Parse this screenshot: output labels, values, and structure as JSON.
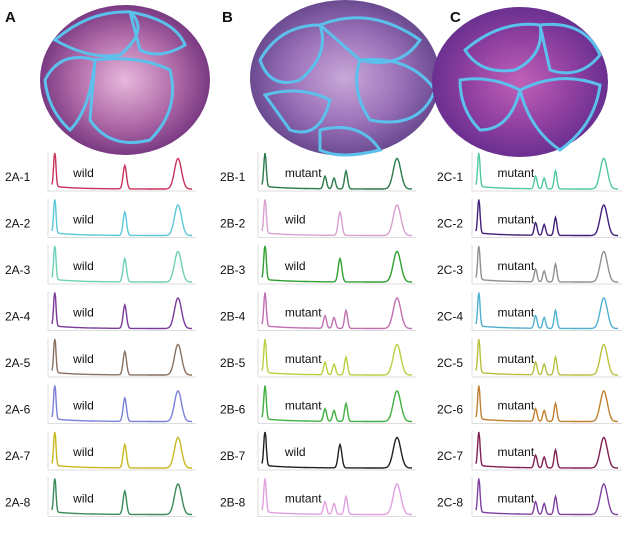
{
  "panels": [
    {
      "letter": "A",
      "rows": [
        {
          "label": "2A-1",
          "status": "wild",
          "color": "#c8325a"
        },
        {
          "label": "2A-2",
          "status": "wild",
          "color": "#5bc8d8"
        },
        {
          "label": "2A-3",
          "status": "wild",
          "color": "#6fd0b8"
        },
        {
          "label": "2A-4",
          "status": "wild",
          "color": "#7a3a9a"
        },
        {
          "label": "2A-5",
          "status": "wild",
          "color": "#8a7060"
        },
        {
          "label": "2A-6",
          "status": "wild",
          "color": "#7a80d8"
        },
        {
          "label": "2A-7",
          "status": "wild",
          "color": "#c8b820"
        },
        {
          "label": "2A-8",
          "status": "wild",
          "color": "#3a8a5a"
        }
      ]
    },
    {
      "letter": "B",
      "rows": [
        {
          "label": "2B-1",
          "status": "mutant",
          "color": "#2a7a4a"
        },
        {
          "label": "2B-2",
          "status": "wild",
          "color": "#d8a0d0"
        },
        {
          "label": "2B-3",
          "status": "wild",
          "color": "#30a030"
        },
        {
          "label": "2B-4",
          "status": "mutant",
          "color": "#c070b0"
        },
        {
          "label": "2B-5",
          "status": "mutant",
          "color": "#b8d040"
        },
        {
          "label": "2B-6",
          "status": "mutant",
          "color": "#40b040"
        },
        {
          "label": "2B-7",
          "status": "wild",
          "color": "#202020"
        },
        {
          "label": "2B-8",
          "status": "mutant",
          "color": "#e0a0e0"
        }
      ]
    },
    {
      "letter": "C",
      "rows": [
        {
          "label": "2C-1",
          "status": "mutant",
          "color": "#50c8a0"
        },
        {
          "label": "2C-2",
          "status": "mutant",
          "color": "#40207a"
        },
        {
          "label": "2C-3",
          "status": "mutant",
          "color": "#909090"
        },
        {
          "label": "2C-4",
          "status": "mutant",
          "color": "#50b0d0"
        },
        {
          "label": "2C-5",
          "status": "mutant",
          "color": "#b8c040"
        },
        {
          "label": "2C-6",
          "status": "mutant",
          "color": "#c08030"
        },
        {
          "label": "2C-7",
          "status": "mutant",
          "color": "#802050"
        },
        {
          "label": "2C-8",
          "status": "mutant",
          "color": "#8040a0"
        }
      ]
    }
  ]
}
